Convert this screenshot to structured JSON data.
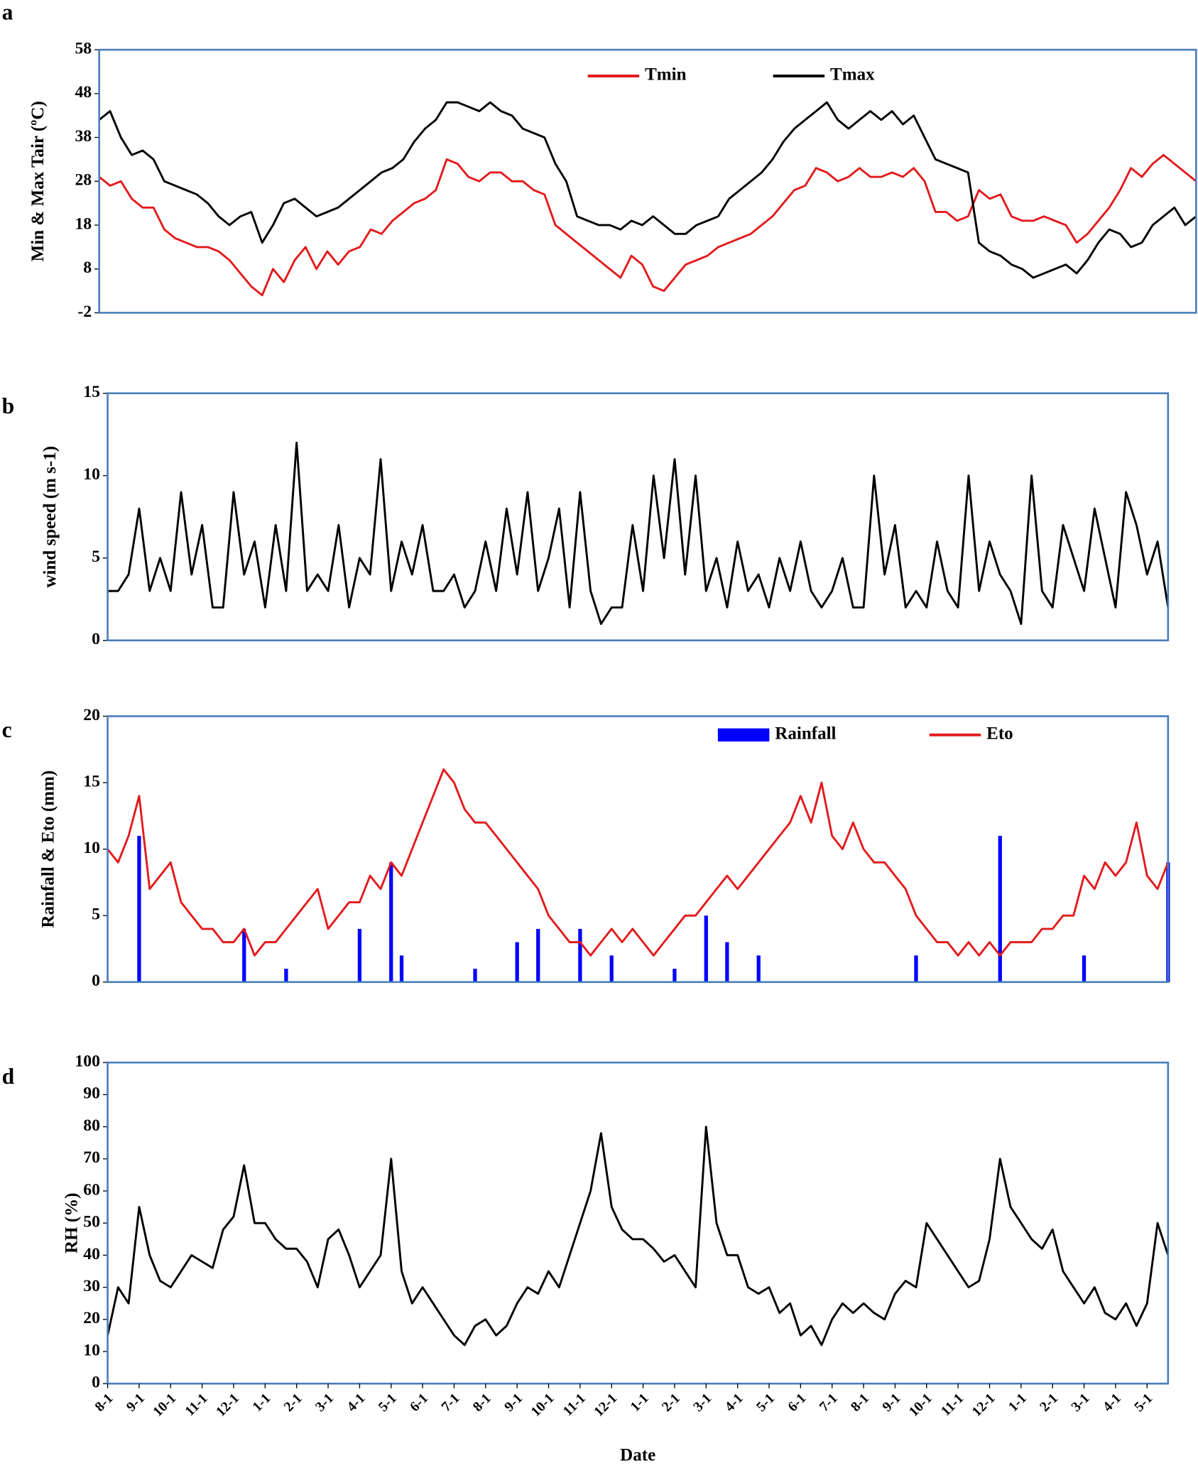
{
  "chart_data": [
    {
      "type": "line",
      "panel": "a",
      "ylabel": "Min & Max Tair (ºC)",
      "ylim": [
        -2,
        58
      ],
      "yticks": [
        -2,
        8,
        18,
        28,
        38,
        48,
        58
      ],
      "series": [
        {
          "name": "Tmin",
          "color": "#e31a1c",
          "values": [
            29,
            27,
            28,
            24,
            22,
            22,
            17,
            15,
            14,
            13,
            13,
            12,
            10,
            7,
            4,
            2,
            8,
            5,
            10,
            13,
            8,
            12,
            9,
            12,
            13,
            17,
            16,
            19,
            21,
            23,
            24,
            26,
            33,
            32,
            29,
            28,
            30,
            30,
            28,
            28,
            26,
            25,
            18,
            16,
            14,
            12,
            10,
            8,
            6,
            11,
            9,
            4,
            3,
            6,
            9,
            10,
            11,
            13,
            14,
            15,
            16,
            18,
            20,
            23,
            26,
            27,
            31,
            30,
            28,
            29,
            31,
            29,
            29,
            30,
            29,
            31,
            28,
            21,
            21,
            19,
            20,
            26,
            24,
            25,
            20,
            19,
            19,
            20,
            19,
            18,
            14,
            16,
            19,
            22,
            26,
            31,
            29,
            32,
            34,
            32,
            30,
            28
          ]
        },
        {
          "name": "Tmax",
          "color": "#000000",
          "values": [
            42,
            44,
            38,
            34,
            35,
            33,
            28,
            27,
            26,
            25,
            23,
            20,
            18,
            20,
            21,
            14,
            18,
            23,
            24,
            22,
            20,
            21,
            22,
            24,
            26,
            28,
            30,
            31,
            33,
            37,
            40,
            42,
            46,
            46,
            45,
            44,
            46,
            44,
            43,
            40,
            39,
            38,
            32,
            28,
            20,
            19,
            18,
            18,
            17,
            19,
            18,
            20,
            18,
            16,
            16,
            18,
            19,
            20,
            24,
            26,
            28,
            30,
            33,
            37,
            40,
            42,
            44,
            46,
            42,
            40,
            42,
            44,
            42,
            44,
            41,
            43,
            38,
            33,
            32,
            31,
            30,
            14,
            12,
            11,
            9,
            8,
            6,
            7,
            8,
            9,
            7,
            10,
            14,
            17,
            16,
            13,
            14,
            18,
            20,
            22,
            18,
            20
          ]
        }
      ]
    },
    {
      "type": "line",
      "panel": "b",
      "ylabel": "wind speed (m s-1)",
      "ylim": [
        0,
        15
      ],
      "yticks": [
        0,
        5,
        10,
        15
      ],
      "series": [
        {
          "color": "#000000",
          "values": [
            3,
            3,
            4,
            8,
            3,
            5,
            3,
            9,
            4,
            7,
            2,
            2,
            9,
            4,
            6,
            2,
            7,
            3,
            12,
            3,
            4,
            3,
            7,
            2,
            5,
            4,
            11,
            3,
            6,
            4,
            7,
            3,
            3,
            4,
            2,
            3,
            6,
            3,
            8,
            4,
            9,
            3,
            5,
            8,
            2,
            9,
            3,
            1,
            2,
            2,
            7,
            3,
            10,
            5,
            11,
            4,
            10,
            3,
            5,
            2,
            6,
            3,
            4,
            2,
            5,
            3,
            6,
            3,
            2,
            3,
            5,
            2,
            2,
            10,
            4,
            7,
            2,
            3,
            2,
            6,
            3,
            2,
            10,
            3,
            6,
            4,
            3,
            1,
            10,
            3,
            2,
            7,
            5,
            3,
            8,
            5,
            2,
            9,
            7,
            4,
            6,
            2
          ]
        }
      ]
    },
    {
      "type": "combo",
      "panel": "c",
      "ylabel": "Rainfall & Eto (mm)",
      "ylim": [
        0,
        20
      ],
      "yticks": [
        0,
        5,
        10,
        15,
        20
      ],
      "series": [
        {
          "name": "Rainfall",
          "type": "bar",
          "color": "#0000ff",
          "values": [
            0,
            0,
            0,
            11,
            0,
            0,
            0,
            0,
            0,
            0,
            0,
            0,
            0,
            4,
            0,
            0,
            0,
            1,
            0,
            0,
            0,
            0,
            0,
            0,
            4,
            0,
            0,
            9,
            2,
            0,
            0,
            0,
            0,
            0,
            0,
            1,
            0,
            0,
            0,
            3,
            0,
            4,
            0,
            0,
            0,
            4,
            0,
            0,
            2,
            0,
            0,
            0,
            0,
            0,
            1,
            0,
            0,
            5,
            0,
            3,
            0,
            0,
            2,
            0,
            0,
            0,
            0,
            0,
            0,
            0,
            0,
            0,
            0,
            0,
            0,
            0,
            0,
            2,
            0,
            0,
            0,
            0,
            0,
            0,
            0,
            11,
            0,
            0,
            0,
            0,
            0,
            0,
            0,
            2,
            0,
            0,
            0,
            0,
            0,
            0,
            0,
            9
          ]
        },
        {
          "name": "Eto",
          "type": "line",
          "color": "#e31a1c",
          "values": [
            10,
            9,
            11,
            14,
            7,
            8,
            9,
            6,
            5,
            4,
            4,
            3,
            3,
            4,
            2,
            3,
            3,
            4,
            5,
            6,
            7,
            4,
            5,
            6,
            6,
            8,
            7,
            9,
            8,
            10,
            12,
            14,
            16,
            15,
            13,
            12,
            12,
            11,
            10,
            9,
            8,
            7,
            5,
            4,
            3,
            3,
            2,
            3,
            4,
            3,
            4,
            3,
            2,
            3,
            4,
            5,
            5,
            6,
            7,
            8,
            7,
            8,
            9,
            10,
            11,
            12,
            14,
            12,
            15,
            11,
            10,
            12,
            10,
            9,
            9,
            8,
            7,
            5,
            4,
            3,
            3,
            2,
            3,
            2,
            3,
            2,
            3,
            3,
            3,
            4,
            4,
            5,
            5,
            8,
            7,
            9,
            8,
            9,
            12,
            8,
            7,
            9
          ]
        }
      ]
    },
    {
      "type": "line",
      "panel": "d",
      "ylabel": "RH (%)",
      "xlabel": "Date",
      "ylim": [
        0,
        100
      ],
      "yticks": [
        0,
        10,
        20,
        30,
        40,
        50,
        60,
        70,
        80,
        90,
        100
      ],
      "categories": [
        "8-1",
        null,
        null,
        "9-1",
        null,
        null,
        "10-1",
        null,
        null,
        "11-1",
        null,
        null,
        "12-1",
        null,
        null,
        "1-1",
        null,
        null,
        "2-1",
        null,
        null,
        "3-1",
        null,
        null,
        "4-1",
        null,
        null,
        "5-1",
        null,
        null,
        "6-1",
        null,
        null,
        "7-1",
        null,
        null,
        "8-1",
        null,
        null,
        "9-1",
        null,
        null,
        "10-1",
        null,
        null,
        "11-1",
        null,
        null,
        "12-1",
        null,
        null,
        "1-1",
        null,
        null,
        "2-1",
        null,
        null,
        "3-1",
        null,
        null,
        "4-1",
        null,
        null,
        "5-1",
        null,
        null,
        "6-1",
        null,
        null,
        "7-1",
        null,
        null,
        "8-1",
        null,
        null,
        "9-1",
        null,
        null,
        "10-1",
        null,
        null,
        "11-1",
        null,
        null,
        "12-1",
        null,
        null,
        "1-1",
        null,
        null,
        "2-1",
        null,
        null,
        "3-1",
        null,
        null,
        "4-1",
        null,
        null,
        "5-1",
        null,
        null
      ],
      "series": [
        {
          "color": "#000000",
          "values": [
            15,
            30,
            25,
            55,
            40,
            32,
            30,
            35,
            40,
            38,
            36,
            48,
            52,
            68,
            50,
            50,
            45,
            42,
            42,
            38,
            30,
            45,
            48,
            40,
            30,
            35,
            40,
            70,
            35,
            25,
            30,
            25,
            20,
            15,
            12,
            18,
            20,
            15,
            18,
            25,
            30,
            28,
            35,
            30,
            40,
            50,
            60,
            78,
            55,
            48,
            45,
            45,
            42,
            38,
            40,
            35,
            30,
            80,
            50,
            40,
            40,
            30,
            28,
            30,
            22,
            25,
            15,
            18,
            12,
            20,
            25,
            22,
            25,
            22,
            20,
            28,
            32,
            30,
            50,
            45,
            40,
            35,
            30,
            32,
            45,
            70,
            55,
            50,
            45,
            42,
            48,
            35,
            30,
            25,
            30,
            22,
            20,
            25,
            18,
            25,
            50,
            40
          ]
        }
      ]
    }
  ]
}
